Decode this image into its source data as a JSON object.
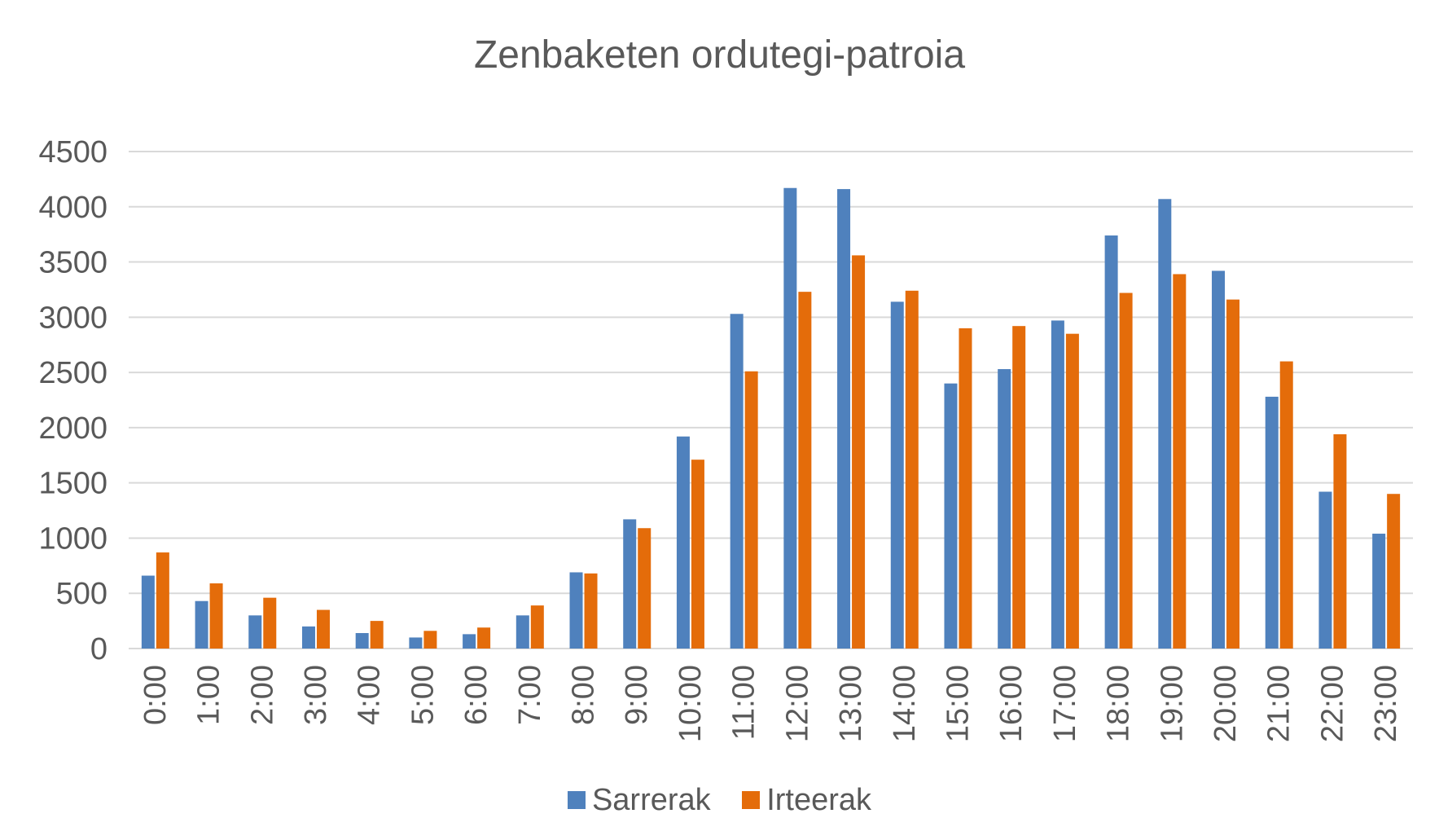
{
  "chart_data": {
    "type": "bar",
    "title": "Zenbaketen ordutegi-patroia",
    "categories": [
      "0:00",
      "1:00",
      "2:00",
      "3:00",
      "4:00",
      "5:00",
      "6:00",
      "7:00",
      "8:00",
      "9:00",
      "10:00",
      "11:00",
      "12:00",
      "13:00",
      "14:00",
      "15:00",
      "16:00",
      "17:00",
      "18:00",
      "19:00",
      "20:00",
      "21:00",
      "22:00",
      "23:00"
    ],
    "series": [
      {
        "name": "Sarrerak",
        "color": "#4F81BD",
        "values": [
          660,
          430,
          300,
          200,
          140,
          100,
          130,
          300,
          690,
          1170,
          1920,
          3030,
          4170,
          4160,
          3140,
          2400,
          2530,
          2970,
          3740,
          4070,
          3420,
          2280,
          1420,
          1040
        ]
      },
      {
        "name": "Irteerak",
        "color": "#E46C0A",
        "values": [
          870,
          590,
          460,
          350,
          250,
          160,
          190,
          390,
          680,
          1090,
          1710,
          2510,
          3230,
          3560,
          3240,
          2900,
          2920,
          2850,
          3220,
          3390,
          3160,
          2600,
          1940,
          1400
        ]
      }
    ],
    "yticks": [
      "0",
      "500",
      "1000",
      "1500",
      "2000",
      "2500",
      "3000",
      "3500",
      "4000",
      "4500"
    ],
    "ylim": [
      0,
      4500
    ],
    "grid": true,
    "legend_position": "bottom",
    "xlabel": "",
    "ylabel": ""
  }
}
